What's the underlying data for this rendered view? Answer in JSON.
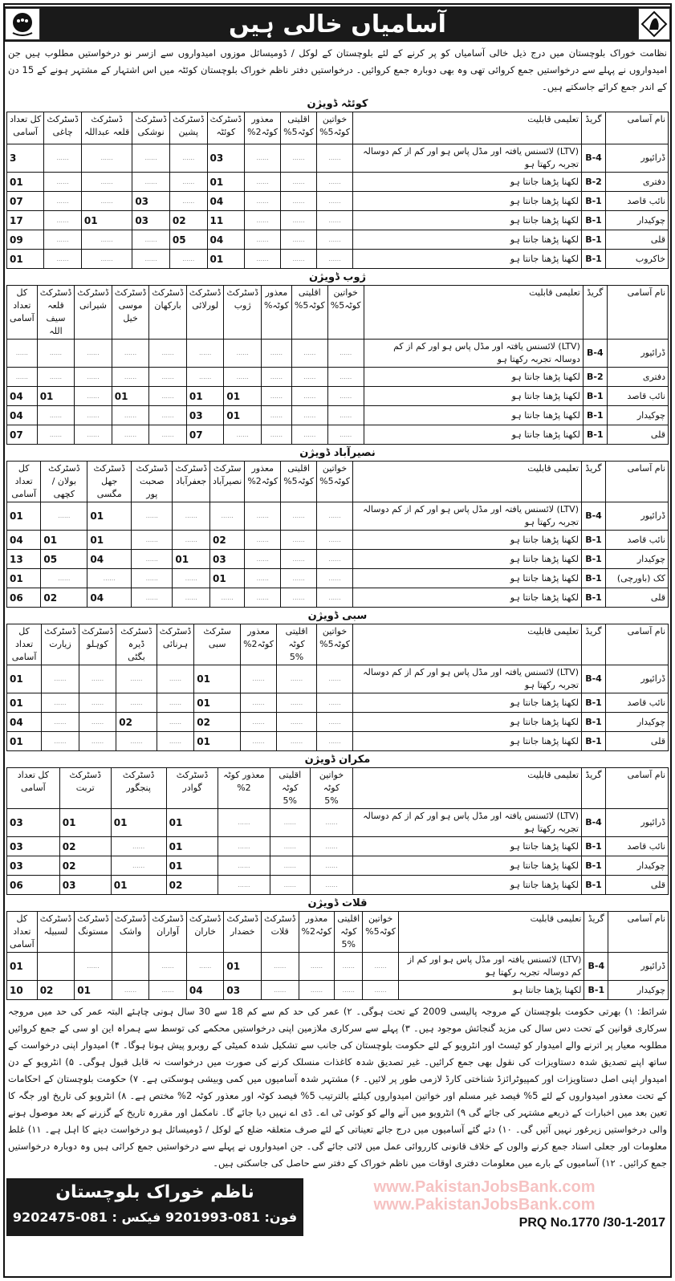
{
  "header": {
    "title": "آسامیاں خالی ہیں"
  },
  "intro": "نظامت خوراک بلوچستان میں درج ذیل خالی آسامیاں کو پر کرنے کے لئے بلوچستان کے لوکل / ڈومیسائل موزوں امیدواروں سے ازسر نو درخواستیں مطلوب ہیں جن امیدواروں نے پہلے سے درخواستیں جمع کروائی تھی وہ بھی دوبارہ جمع کروائیں۔ درخواستیں دفتر ناظم خوراک بلوچستان کوئٹہ میں اس اشتہار کے مشتہر ہونے کے 15 دن کے اندر جمع کرائے جاسکتے ہیں۔",
  "placeholder_dots": "......",
  "divisions": [
    {
      "title": "کوئٹہ ڈویژن",
      "columns": [
        "نام آسامی",
        "گریڈ",
        "تعلیمی قابلیت",
        "خواتین\nکوٹہ5%",
        "اقلیتی\nکوٹہ5%",
        "معذور\nکوٹہ2%",
        "ڈسٹرکٹ\nکوئٹہ",
        "ڈسٹرکٹ\nپشین",
        "ڈسٹرکٹ\nنوشکی",
        "ڈسٹرکٹ\nقلعہ عبداللہ",
        "ڈسٹرکٹ\nچاغی",
        "کل تعداد\nآسامی"
      ],
      "rows": [
        [
          "ڈرائیور",
          "B-4",
          "(LTV) لائسنس یافتہ اور مڈل پاس ہو اور کم از کم دوسالہ تجربہ رکھتا ہو",
          "",
          "",
          "",
          "03",
          "",
          "",
          "",
          "",
          "3"
        ],
        [
          "دفتری",
          "B-2",
          "لکھنا پڑھنا جانتا ہو",
          "",
          "",
          "",
          "01",
          "",
          "",
          "",
          "",
          "01"
        ],
        [
          "نائب قاصد",
          "B-1",
          "لکھنا پڑھنا جانتا ہو",
          "",
          "",
          "",
          "04",
          "",
          "03",
          "",
          "",
          "07"
        ],
        [
          "چوکیدار",
          "B-1",
          "لکھنا پڑھنا جانتا ہو",
          "",
          "",
          "",
          "11",
          "02",
          "03",
          "01",
          "",
          "17"
        ],
        [
          "قلی",
          "B-1",
          "لکھنا پڑھنا جانتا ہو",
          "",
          "",
          "",
          "04",
          "05",
          "",
          "",
          "",
          "09"
        ],
        [
          "خاکروب",
          "B-1",
          "لکھنا پڑھنا جانتا ہو",
          "",
          "",
          "",
          "01",
          "",
          "",
          "",
          "",
          "01"
        ]
      ]
    },
    {
      "title": "ژوب ڈویژن",
      "columns": [
        "نام آسامی",
        "گریڈ",
        "تعلیمی قابلیت",
        "خواتین\nکوٹہ5%",
        "اقلیتی\nکوٹہ5%",
        "معذور\nکوٹہ%",
        "ڈسٹرکٹ\nژوب",
        "ڈسٹرکٹ\nلورلائی",
        "ڈسٹرکٹ\nبارکھان",
        "ڈسٹرکٹ\nموسی خیل",
        "ڈسٹرکٹ\nشیرانی",
        "ڈسٹرکٹ\nقلعہ سیف اللہ",
        "کل تعداد\nآسامی"
      ],
      "rows": [
        [
          "ڈرائیور",
          "B-4",
          "(LTV) لائسنس یافتہ اور مڈل پاس ہو اور کم از کم دوسالہ تجربہ رکھتا ہو",
          "",
          "",
          "",
          "",
          "",
          "",
          "",
          "",
          "",
          ""
        ],
        [
          "دفتری",
          "B-2",
          "لکھنا پڑھنا جانتا ہو",
          "",
          "",
          "",
          "",
          "",
          "",
          "",
          "",
          "",
          ""
        ],
        [
          "نائب قاصد",
          "B-1",
          "لکھنا پڑھنا جانتا ہو",
          "",
          "",
          "",
          "01",
          "01",
          "",
          "01",
          "",
          "01",
          "04"
        ],
        [
          "چوکیدار",
          "B-1",
          "لکھنا پڑھنا جانتا ہو",
          "",
          "",
          "",
          "01",
          "03",
          "",
          "",
          "",
          "",
          "04"
        ],
        [
          "قلی",
          "B-1",
          "لکھنا پڑھنا جانتا ہو",
          "",
          "",
          "",
          "",
          "07",
          "",
          "",
          "",
          "",
          "07"
        ]
      ]
    },
    {
      "title": "نصیرآباد ڈویژن",
      "columns": [
        "نام آسامی",
        "گریڈ",
        "تعلیمی قابلیت",
        "خواتین\nکوٹہ5%",
        "اقلیتی\nکوٹہ5%",
        "معذور\nکوٹہ2%",
        "سٹرکٹ\nنصیرآباد",
        "ڈسٹرکٹ\nجعفرآباد",
        "ڈسٹرکٹ\nصحبت پور",
        "ڈسٹرکٹ\nجھل مگسی",
        "ڈسٹرکٹ\nبولان / کچھی",
        "کل تعداد\nآسامی"
      ],
      "rows": [
        [
          "ڈرائیور",
          "B-4",
          "(LTV) لائسنس یافتہ اور مڈل پاس ہو اور کم از کم دوسالہ تجربہ رکھتا ہو",
          "",
          "",
          "",
          "",
          "",
          "",
          "01",
          "",
          "01"
        ],
        [
          "نائب قاصد",
          "B-1",
          "لکھنا پڑھنا جانتا ہو",
          "",
          "",
          "",
          "02",
          "",
          "",
          "01",
          "01",
          "04"
        ],
        [
          "چوکیدار",
          "B-1",
          "لکھنا پڑھنا جانتا ہو",
          "",
          "",
          "",
          "03",
          "01",
          "",
          "04",
          "05",
          "13"
        ],
        [
          "کک (باورچی)",
          "B-1",
          "لکھنا پڑھنا جانتا ہو",
          "",
          "",
          "",
          "01",
          "",
          "",
          "",
          "",
          "01"
        ],
        [
          "قلی",
          "B-1",
          "لکھنا پڑھنا جانتا ہو",
          "",
          "",
          "",
          "",
          "",
          "",
          "04",
          "02",
          "06"
        ]
      ]
    },
    {
      "title": "سبی ڈویژن",
      "columns": [
        "نام آسامی",
        "گریڈ",
        "تعلیمی قابلیت",
        "خواتین\nکوٹہ5%",
        "اقلیتی کوٹہ\n5%",
        "معذور\nکوٹہ2%",
        "سٹرکٹ سبی",
        "ڈسٹرکٹ\nہرنائی",
        "ڈسٹرکٹ\nڈیرہ بگٹی",
        "ڈسٹرکٹ\nکوہلو",
        "ڈسٹرکٹ\nزیارت",
        "کل تعداد\nآسامی"
      ],
      "rows": [
        [
          "ڈرائیور",
          "B-4",
          "(LTV) لائسنس یافتہ اور مڈل پاس ہو اور کم از کم دوسالہ تجربہ رکھتا ہو",
          "",
          "",
          "",
          "01",
          "",
          "",
          "",
          "",
          "01"
        ],
        [
          "نائب قاصد",
          "B-1",
          "لکھنا پڑھنا جانتا ہو",
          "",
          "",
          "",
          "01",
          "",
          "",
          "",
          "",
          "01"
        ],
        [
          "چوکیدار",
          "B-1",
          "لکھنا پڑھنا جانتا ہو",
          "",
          "",
          "",
          "02",
          "",
          "02",
          "",
          "",
          "04"
        ],
        [
          "قلی",
          "B-1",
          "لکھنا پڑھنا جانتا ہو",
          "",
          "",
          "",
          "01",
          "",
          "",
          "",
          "",
          "01"
        ]
      ]
    },
    {
      "title": "مکران ڈویژن",
      "columns": [
        "نام آسامی",
        "گریڈ",
        "تعلیمی قابلیت",
        "خواتین کوٹہ\n5%",
        "اقلیتی کوٹہ\n5%",
        "معذور کوٹہ 2%",
        "ڈسٹرکٹ گوادر",
        "ڈسٹرکٹ پنجگور",
        "ڈسٹرکٹ تربت",
        "کل تعداد آسامی"
      ],
      "rows": [
        [
          "ڈرائیور",
          "B-4",
          "(LTV) لائسنس یافتہ اور مڈل پاس ہو اور کم از کم دوسالہ تجربہ رکھتا ہو",
          "",
          "",
          "",
          "01",
          "01",
          "01",
          "03"
        ],
        [
          "نائب قاصد",
          "B-1",
          "لکھنا پڑھنا جانتا ہو",
          "",
          "",
          "",
          "01",
          "",
          "02",
          "03"
        ],
        [
          "چوکیدار",
          "B-1",
          "لکھنا پڑھنا جانتا ہو",
          "",
          "",
          "",
          "01",
          "",
          "02",
          "03"
        ],
        [
          "قلی",
          "B-1",
          "لکھنا پڑھنا جانتا ہو",
          "",
          "",
          "",
          "02",
          "01",
          "03",
          "06"
        ]
      ]
    },
    {
      "title": "قلات ڈویژن",
      "columns": [
        "نام آسامی",
        "گریڈ",
        "تعلیمی قابلیت",
        "خواتین\nکوٹہ5%",
        "اقلیتی کوٹہ\n5%",
        "معذور\nکوٹہ2%",
        "ڈسٹرکٹ\nقلات",
        "ڈسٹرکٹ\nخضدار",
        "ڈسٹرکٹ\nخاران",
        "ڈسٹرکٹ\nآواران",
        "ڈسٹرکٹ\nواشک",
        "ڈسٹرکٹ\nمستونگ",
        "ڈسٹرکٹ\nلسبیلہ",
        "کل تعداد\nآسامی"
      ],
      "rows": [
        [
          "ڈرائیور",
          "B-4",
          "(LTV) لائسنس یافتہ اور مڈل پاس ہو اور کم از کم دوسالہ تجربہ رکھتا ہو",
          "",
          "",
          "",
          "",
          "01",
          "",
          "",
          "-",
          "",
          "-",
          "01"
        ],
        [
          "چوکیدار",
          "B-1",
          "لکھنا پڑھنا جانتا ہو",
          "",
          "",
          "",
          "",
          "03",
          "04",
          "",
          "",
          "01",
          "02",
          "10"
        ]
      ]
    }
  ],
  "terms": "شرائط: ۱) بھرتی حکومت بلوچستان کے مروجہ پالیسی 2009 کے تحت ہوگی۔ ۲) عمر کی حد کم سے کم 18 سے 30 سال ہونی چاہئے البتہ عمر کی حد میں مروجہ سرکاری قوانین کے تحت دس سال کی مزید گنجائش موجود ہیں۔ ۳) پہلے سے سرکاری ملازمین اپنی درخواستیں محکمے کی توسط سے ہمراہ این او سی کے جمع کروائیں مطلوبہ معیار پر اترنے والے امیدوار کو ٹیسٹ اور انٹرویو کے لئے حکومت بلوچستان کی جانب سے تشکیل شدہ کمیٹی کے روبرو پیش ہونا ہوگا۔ ۴) امیدوار اپنی درخواست کے ساتھ اپنے تصدیق شدہ دستاویزات کی نقول بھی جمع کرائیں۔ غیر تصدیق شدہ کاغذات منسلک کرنے کی صورت میں درخواست نہ قابل قبول ہوگی۔ ۵) انٹرویو کے دن امیدوار اپنی اصل دستاویزات اور کمپیوٹرائزڈ شناختی کارڈ لازمی طور پر لائیں۔ ۶) مشتہر شدہ آسامیوں میں کمی وبیشی ہوسکتی ہے۔ ۷) حکومت بلوچستان کے احکامات کے تحت معذور امیدواروں کے لئے 5% فیصد غیر مسلم اور خواتین امیدواروں کیلئے بالترتیب 5% فیصد کوٹہ اور معذور کوٹہ 2% مختص ہے۔ ۸) انٹرویو کی تاریخ اور جگہ کا تعین بعد میں اخبارات کے ذریعے مشتہر کی جائے گی ۹) انٹرویو میں آنے والے کو کوئی ٹی اے۔ ڈی اے نہیں دیا جائے گا۔ نامکمل اور مقررہ تاریخ کے گزرنے کے بعد موصول ہونے والی درخواستیں زیرغور نہیں آئیں گی۔ ۱۰) دئے گئے آسامیوں میں درج جائے تعیناتی کے لئے صرف متعلقہ ضلع کے لوکل / ڈومیسائل ہو درخواست دینے کا اہل ہے۔ ۱۱) غلط معلومات اور جعلی اسناد جمع کرنے والوں کے خلاف قانونی کارروائی عمل میں لائی جائے گی۔ جن امیدواروں نے پہلے سے درخواستیں جمع کرائی ہیں وہ دوبارہ درخواستیں جمع کرائیں۔ ۱۲) آسامیوں کے بارے میں معلومات دفتری اوقات میں ناظم خوراک کے دفتر سے حاصل کی جاسکتی ہیں۔",
  "footer": {
    "office": "ناظم خوراک بلوچستان",
    "phone_line": "فون: 081-9201993  فیکس : 081-9202475",
    "prq": "PRQ No.1770 /30-1-2017"
  },
  "watermark": "www.PakistanJobsBank.com"
}
